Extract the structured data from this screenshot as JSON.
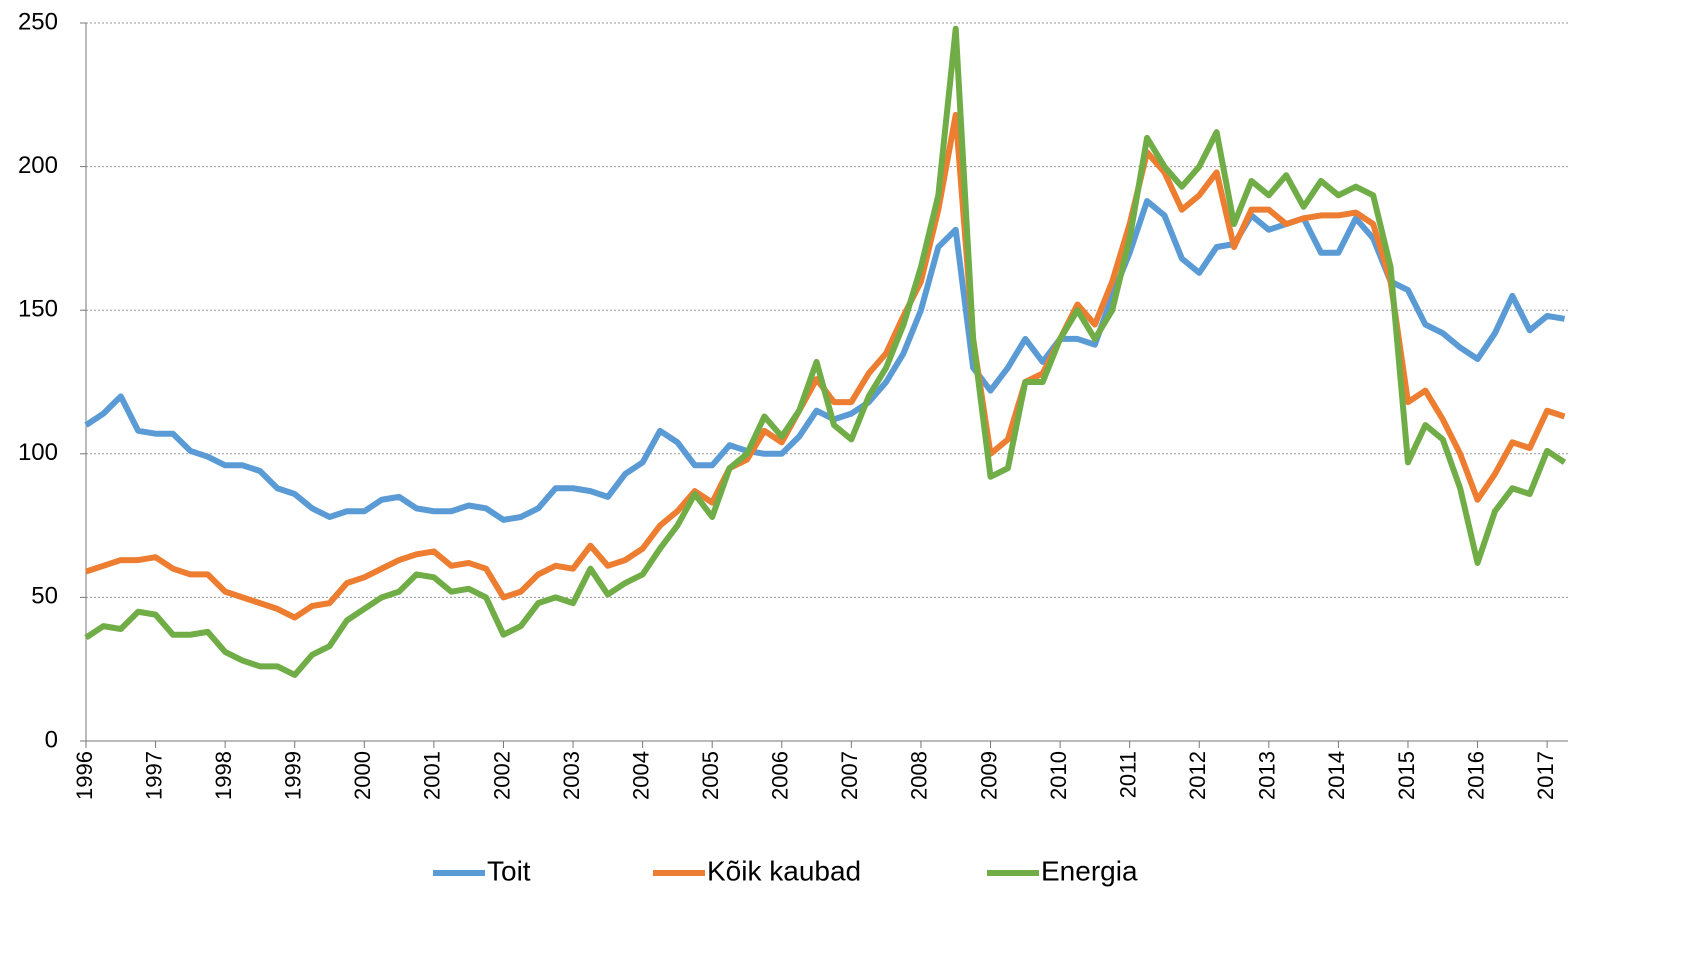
{
  "chart_data": {
    "type": "line",
    "x": [
      1996,
      1996.25,
      1996.5,
      1996.75,
      1997,
      1997.25,
      1997.5,
      1997.75,
      1998,
      1998.25,
      1998.5,
      1998.75,
      1999,
      1999.25,
      1999.5,
      1999.75,
      2000,
      2000.25,
      2000.5,
      2000.75,
      2001,
      2001.25,
      2001.5,
      2001.75,
      2002,
      2002.25,
      2002.5,
      2002.75,
      2003,
      2003.25,
      2003.5,
      2003.75,
      2004,
      2004.25,
      2004.5,
      2004.75,
      2005,
      2005.25,
      2005.5,
      2005.75,
      2006,
      2006.25,
      2006.5,
      2006.75,
      2007,
      2007.25,
      2007.5,
      2007.75,
      2008,
      2008.25,
      2008.5,
      2008.75,
      2009,
      2009.25,
      2009.5,
      2009.75,
      2010,
      2010.25,
      2010.5,
      2010.75,
      2011,
      2011.25,
      2011.5,
      2011.75,
      2012,
      2012.25,
      2012.5,
      2012.75,
      2013,
      2013.25,
      2013.5,
      2013.75,
      2014,
      2014.25,
      2014.5,
      2014.75,
      2015,
      2015.25,
      2015.5,
      2015.75,
      2016,
      2016.25,
      2016.5,
      2016.75,
      2017,
      2017.25
    ],
    "series": [
      {
        "name": "Toit",
        "color": "#5b9bd5",
        "values": [
          110,
          114,
          120,
          108,
          107,
          107,
          101,
          99,
          96,
          96,
          94,
          88,
          86,
          81,
          78,
          80,
          80,
          84,
          85,
          81,
          80,
          80,
          82,
          81,
          77,
          78,
          81,
          88,
          88,
          87,
          85,
          93,
          97,
          108,
          104,
          96,
          96,
          103,
          101,
          100,
          100,
          106,
          115,
          112,
          114,
          118,
          125,
          135,
          150,
          172,
          178,
          130,
          122,
          130,
          140,
          132,
          140,
          140,
          138,
          155,
          170,
          188,
          183,
          168,
          163,
          172,
          173,
          183,
          178,
          180,
          182,
          170,
          170,
          182,
          175,
          160,
          157,
          145,
          142,
          137,
          133,
          142,
          155,
          143,
          148,
          147
        ]
      },
      {
        "name": "Kõik kaubad",
        "color": "#ed7d31",
        "values": [
          59,
          61,
          63,
          63,
          64,
          60,
          58,
          58,
          52,
          50,
          48,
          46,
          43,
          47,
          48,
          55,
          57,
          60,
          63,
          65,
          66,
          61,
          62,
          60,
          50,
          52,
          58,
          61,
          60,
          68,
          61,
          63,
          67,
          75,
          80,
          87,
          83,
          95,
          98,
          108,
          104,
          115,
          126,
          118,
          118,
          128,
          135,
          148,
          160,
          185,
          218,
          140,
          100,
          105,
          125,
          128,
          140,
          152,
          145,
          160,
          180,
          205,
          198,
          185,
          190,
          198,
          172,
          185,
          185,
          180,
          182,
          183,
          183,
          184,
          180,
          160,
          118,
          122,
          112,
          100,
          84,
          93,
          104,
          102,
          115,
          113
        ]
      },
      {
        "name": "Energia",
        "color": "#70ad47",
        "values": [
          36,
          40,
          39,
          45,
          44,
          37,
          37,
          38,
          31,
          28,
          26,
          26,
          23,
          30,
          33,
          42,
          46,
          50,
          52,
          58,
          57,
          52,
          53,
          50,
          37,
          40,
          48,
          50,
          48,
          60,
          51,
          55,
          58,
          67,
          75,
          86,
          78,
          95,
          100,
          113,
          106,
          115,
          132,
          110,
          105,
          120,
          130,
          145,
          165,
          190,
          248,
          140,
          92,
          95,
          125,
          125,
          140,
          150,
          140,
          150,
          175,
          210,
          200,
          193,
          200,
          212,
          180,
          195,
          190,
          197,
          186,
          195,
          190,
          193,
          190,
          165,
          97,
          110,
          105,
          88,
          62,
          80,
          88,
          86,
          101,
          97
        ]
      }
    ],
    "xlim": [
      1996,
      2017.3
    ],
    "xticks": [
      1996,
      1997,
      1998,
      1999,
      2000,
      2001,
      2002,
      2003,
      2004,
      2005,
      2006,
      2007,
      2008,
      2009,
      2010,
      2011,
      2012,
      2013,
      2014,
      2015,
      2016,
      2017
    ],
    "ylim": [
      0,
      250
    ],
    "yticks": [
      0,
      50,
      100,
      150,
      200,
      250
    ],
    "grid": true,
    "legend": "bottom"
  }
}
